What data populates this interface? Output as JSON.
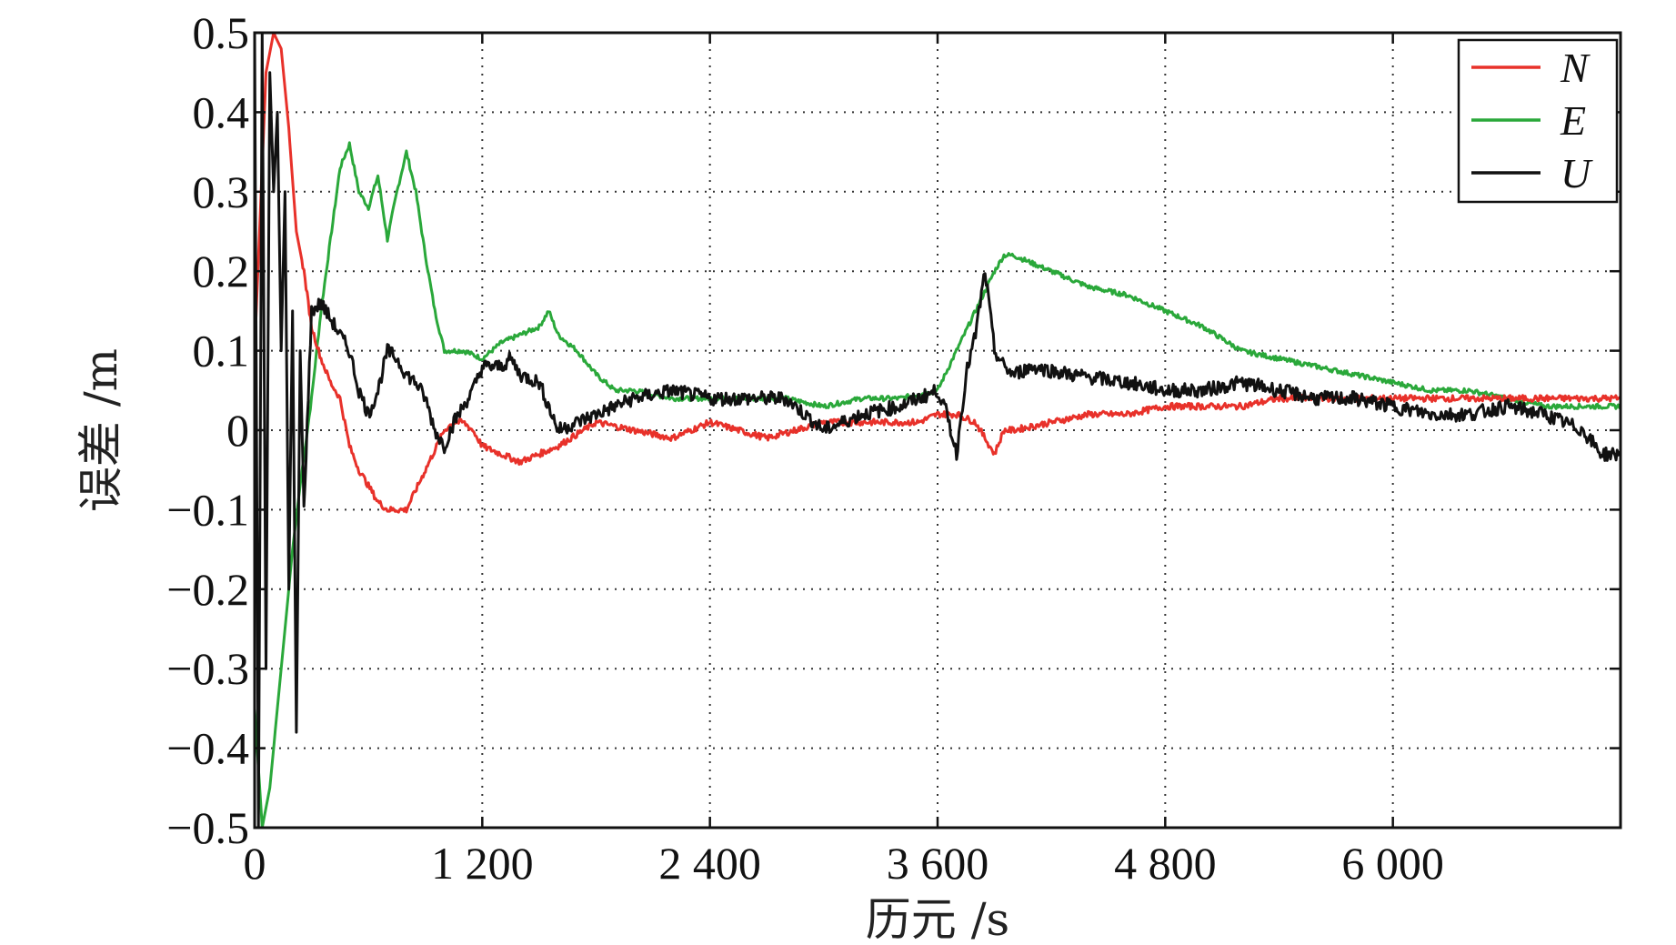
{
  "chart_data": {
    "type": "line",
    "xlabel": "历元 /s",
    "ylabel": "误差 /m",
    "xlim": [
      0,
      7200
    ],
    "ylim": [
      -0.5,
      0.5
    ],
    "xticks": [
      0,
      1200,
      2400,
      3600,
      4800,
      6000
    ],
    "xtick_labels": [
      "0",
      "1 200",
      "2 400",
      "3 600",
      "4 800",
      "6 000"
    ],
    "yticks": [
      0.5,
      0.4,
      0.3,
      0.2,
      0.1,
      0,
      -0.1,
      -0.2,
      -0.3,
      -0.4,
      -0.5
    ],
    "ytick_labels": [
      "0.5",
      "0.4",
      "0.3",
      "0.2",
      "0.1",
      "0",
      "−0.1",
      "−0.2",
      "−0.3",
      "−0.4",
      "−0.5"
    ],
    "grid": true,
    "legend_position": "top-right",
    "series": [
      {
        "name": "N",
        "color": "#e8312a",
        "x": [
          0,
          60,
          100,
          140,
          180,
          220,
          260,
          300,
          350,
          400,
          450,
          500,
          550,
          600,
          650,
          700,
          800,
          900,
          1000,
          1050,
          1100,
          1150,
          1200,
          1300,
          1400,
          1500,
          1600,
          1800,
          2000,
          2200,
          2400,
          2700,
          3000,
          3300,
          3500,
          3600,
          3700,
          3800,
          3850,
          3900,
          3950,
          4000,
          4200,
          4400,
          4600,
          4800,
          5000,
          5200,
          5400,
          5600,
          5800,
          6000,
          6200,
          6400,
          6600,
          6800,
          7000,
          7200
        ],
        "y": [
          0.1,
          0.45,
          0.5,
          0.48,
          0.38,
          0.25,
          0.2,
          0.13,
          0.09,
          0.06,
          0.04,
          -0.02,
          -0.05,
          -0.07,
          -0.09,
          -0.1,
          -0.1,
          -0.05,
          0.0,
          0.01,
          0.01,
          0.0,
          -0.02,
          -0.03,
          -0.04,
          -0.03,
          -0.02,
          0.01,
          0.0,
          -0.01,
          0.01,
          -0.01,
          0.01,
          0.01,
          0.01,
          0.02,
          0.02,
          0.01,
          -0.01,
          -0.03,
          0.0,
          0.0,
          0.01,
          0.02,
          0.02,
          0.03,
          0.03,
          0.03,
          0.04,
          0.04,
          0.04,
          0.04,
          0.04,
          0.04,
          0.04,
          0.04,
          0.04,
          0.04
        ]
      },
      {
        "name": "E",
        "color": "#2aa83a",
        "x": [
          0,
          40,
          80,
          120,
          160,
          200,
          250,
          300,
          350,
          400,
          450,
          500,
          550,
          600,
          650,
          700,
          750,
          800,
          850,
          900,
          950,
          1000,
          1100,
          1200,
          1300,
          1400,
          1500,
          1550,
          1600,
          1700,
          1800,
          1900,
          2000,
          2200,
          2400,
          2600,
          2800,
          3000,
          3200,
          3400,
          3600,
          3700,
          3800,
          3900,
          3950,
          4000,
          4100,
          4200,
          4400,
          4600,
          4800,
          5000,
          5200,
          5400,
          5600,
          5800,
          6000,
          6200,
          6400,
          6600,
          6800,
          7000,
          7200
        ],
        "y": [
          -0.35,
          -0.5,
          -0.45,
          -0.35,
          -0.25,
          -0.15,
          -0.05,
          0.04,
          0.15,
          0.24,
          0.33,
          0.36,
          0.3,
          0.28,
          0.32,
          0.24,
          0.3,
          0.35,
          0.3,
          0.22,
          0.15,
          0.1,
          0.1,
          0.09,
          0.11,
          0.12,
          0.13,
          0.15,
          0.12,
          0.1,
          0.07,
          0.05,
          0.05,
          0.04,
          0.04,
          0.04,
          0.04,
          0.03,
          0.04,
          0.04,
          0.05,
          0.1,
          0.15,
          0.2,
          0.22,
          0.22,
          0.21,
          0.2,
          0.18,
          0.17,
          0.15,
          0.13,
          0.1,
          0.09,
          0.08,
          0.07,
          0.06,
          0.05,
          0.05,
          0.04,
          0.03,
          0.03,
          0.03
        ]
      },
      {
        "name": "U",
        "color": "#111111",
        "x": [
          0,
          20,
          40,
          60,
          80,
          100,
          120,
          140,
          160,
          180,
          200,
          220,
          240,
          260,
          300,
          350,
          400,
          450,
          500,
          550,
          600,
          650,
          700,
          750,
          800,
          850,
          900,
          950,
          1000,
          1050,
          1100,
          1150,
          1200,
          1300,
          1350,
          1400,
          1500,
          1600,
          1700,
          1800,
          2000,
          2200,
          2400,
          2600,
          2800,
          3000,
          3200,
          3400,
          3600,
          3650,
          3700,
          3750,
          3800,
          3850,
          3900,
          3950,
          4000,
          4100,
          4300,
          4600,
          4800,
          5000,
          5200,
          5400,
          5600,
          5800,
          6000,
          6200,
          6400,
          6600,
          6800,
          7000,
          7100,
          7200
        ],
        "y": [
          0.5,
          -0.5,
          0.5,
          -0.3,
          0.45,
          0.3,
          0.4,
          0.1,
          0.3,
          -0.2,
          0.15,
          -0.38,
          0.1,
          -0.1,
          0.15,
          0.16,
          0.14,
          0.12,
          0.1,
          0.05,
          0.02,
          0.05,
          0.1,
          0.09,
          0.07,
          0.06,
          0.04,
          0.0,
          -0.02,
          0.01,
          0.03,
          0.05,
          0.08,
          0.08,
          0.09,
          0.07,
          0.06,
          0.0,
          0.01,
          0.02,
          0.04,
          0.05,
          0.04,
          0.04,
          0.04,
          0.0,
          0.02,
          0.03,
          0.05,
          0.02,
          -0.03,
          0.07,
          0.12,
          0.2,
          0.1,
          0.08,
          0.07,
          0.08,
          0.07,
          0.06,
          0.05,
          0.05,
          0.06,
          0.05,
          0.04,
          0.04,
          0.03,
          0.02,
          0.02,
          0.03,
          0.02,
          0.0,
          -0.03,
          -0.03
        ]
      }
    ]
  }
}
